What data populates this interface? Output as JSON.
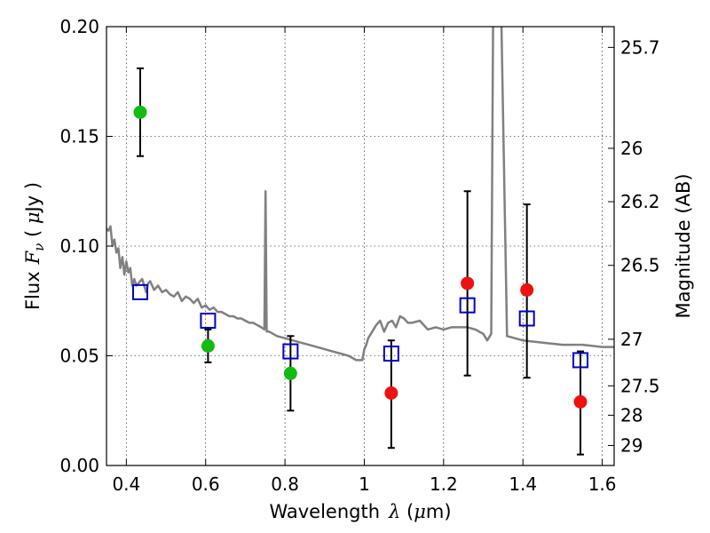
{
  "chart_data": {
    "type": "scatter",
    "xlabel": "Wavelength",
    "xlabel_symbol": "λ",
    "xlabel_unit_open": " (",
    "xlabel_unit_mu": "μ",
    "xlabel_unit_rest": "m)",
    "ylabel": "Flux",
    "ylabel_symbol": "F",
    "ylabel_subscript": "ν",
    "ylabel_unit_open": "  ( ",
    "ylabel_unit_mu": "μ",
    "ylabel_unit_rest": "Jy )",
    "y2label": "Magnitude (AB)",
    "xlim": [
      0.35,
      1.63
    ],
    "ylim": [
      0.0,
      0.2
    ],
    "grid": true,
    "x_ticks": [
      0.4,
      0.6,
      0.8,
      1.0,
      1.2,
      1.4,
      1.6
    ],
    "x_tick_labels": [
      "0.4",
      "0.6",
      "0.8",
      "1",
      "1.2",
      "1.4",
      "1.6"
    ],
    "y_ticks": [
      0.0,
      0.05,
      0.1,
      0.15,
      0.2
    ],
    "y_tick_labels": [
      "0.00",
      "0.05",
      "0.10",
      "0.15",
      "0.20"
    ],
    "right_ticks": [
      {
        "mag": 25.7,
        "label": "25.7"
      },
      {
        "mag": 26,
        "label": "26"
      },
      {
        "mag": 26.2,
        "label": "26.2"
      },
      {
        "mag": 26.5,
        "label": "26.5"
      },
      {
        "mag": 27,
        "label": "27"
      },
      {
        "mag": 27.5,
        "label": "27.5"
      },
      {
        "mag": 28,
        "label": "28"
      },
      {
        "mag": 29,
        "label": "29"
      }
    ],
    "colors": {
      "detection_green": "#11bb11",
      "detection_red": "#ee1111",
      "model_box": "#0000cc",
      "spectrum": "#808080",
      "errorbar": "#000000"
    },
    "series": [
      {
        "marker": "circle",
        "color": "#11bb11",
        "points": [
          {
            "x": 0.435,
            "y": 0.161,
            "ylo": 0.141,
            "yhi": 0.181
          },
          {
            "x": 0.606,
            "y": 0.0545,
            "ylo": 0.047,
            "yhi": 0.062
          },
          {
            "x": 0.814,
            "y": 0.042,
            "ylo": 0.025,
            "yhi": 0.059
          }
        ]
      },
      {
        "marker": "circle",
        "color": "#ee1111",
        "points": [
          {
            "x": 1.068,
            "y": 0.033,
            "ylo": 0.008,
            "yhi": 0.057
          },
          {
            "x": 1.26,
            "y": 0.083,
            "ylo": 0.041,
            "yhi": 0.125
          },
          {
            "x": 1.41,
            "y": 0.08,
            "ylo": 0.04,
            "yhi": 0.119
          },
          {
            "x": 1.545,
            "y": 0.029,
            "ylo": 0.005,
            "yhi": 0.052
          }
        ]
      },
      {
        "marker": "square",
        "color": "#0000cc",
        "points": [
          {
            "x": 0.435,
            "y": 0.079
          },
          {
            "x": 0.606,
            "y": 0.066
          },
          {
            "x": 0.814,
            "y": 0.052
          },
          {
            "x": 1.068,
            "y": 0.051
          },
          {
            "x": 1.26,
            "y": 0.073
          },
          {
            "x": 1.41,
            "y": 0.067
          },
          {
            "x": 1.545,
            "y": 0.048
          }
        ]
      },
      {
        "marker": "line",
        "color": "#808080",
        "points": [
          [
            0.35,
            0.108
          ],
          [
            0.355,
            0.107
          ],
          [
            0.36,
            0.109
          ],
          [
            0.365,
            0.1
          ],
          [
            0.37,
            0.103
          ],
          [
            0.375,
            0.097
          ],
          [
            0.38,
            0.099
          ],
          [
            0.385,
            0.09
          ],
          [
            0.39,
            0.095
          ],
          [
            0.395,
            0.087
          ],
          [
            0.4,
            0.093
          ],
          [
            0.405,
            0.088
          ],
          [
            0.41,
            0.09
          ],
          [
            0.415,
            0.082
          ],
          [
            0.42,
            0.085
          ],
          [
            0.425,
            0.082
          ],
          [
            0.43,
            0.083
          ],
          [
            0.44,
            0.085
          ],
          [
            0.45,
            0.079
          ],
          [
            0.455,
            0.083
          ],
          [
            0.46,
            0.084
          ],
          [
            0.47,
            0.08
          ],
          [
            0.48,
            0.082
          ],
          [
            0.49,
            0.079
          ],
          [
            0.5,
            0.08
          ],
          [
            0.51,
            0.078
          ],
          [
            0.52,
            0.077
          ],
          [
            0.53,
            0.079
          ],
          [
            0.54,
            0.075
          ],
          [
            0.55,
            0.077
          ],
          [
            0.56,
            0.076
          ],
          [
            0.57,
            0.074
          ],
          [
            0.58,
            0.076
          ],
          [
            0.59,
            0.072
          ],
          [
            0.6,
            0.073
          ],
          [
            0.61,
            0.071
          ],
          [
            0.62,
            0.072
          ],
          [
            0.63,
            0.07
          ],
          [
            0.64,
            0.07
          ],
          [
            0.65,
            0.069
          ],
          [
            0.66,
            0.068
          ],
          [
            0.67,
            0.068
          ],
          [
            0.68,
            0.067
          ],
          [
            0.69,
            0.067
          ],
          [
            0.7,
            0.066
          ],
          [
            0.71,
            0.065
          ],
          [
            0.72,
            0.065
          ],
          [
            0.73,
            0.064
          ],
          [
            0.74,
            0.063
          ],
          [
            0.748,
            0.062
          ],
          [
            0.751,
            0.125
          ],
          [
            0.754,
            0.061
          ],
          [
            0.76,
            0.061
          ],
          [
            0.78,
            0.059
          ],
          [
            0.8,
            0.058
          ],
          [
            0.82,
            0.057
          ],
          [
            0.84,
            0.056
          ],
          [
            0.86,
            0.055
          ],
          [
            0.88,
            0.054
          ],
          [
            0.9,
            0.053
          ],
          [
            0.92,
            0.052
          ],
          [
            0.94,
            0.051
          ],
          [
            0.96,
            0.05
          ],
          [
            0.98,
            0.048
          ],
          [
            0.995,
            0.048
          ],
          [
            1.0,
            0.053
          ],
          [
            1.005,
            0.055
          ],
          [
            1.01,
            0.058
          ],
          [
            1.02,
            0.061
          ],
          [
            1.03,
            0.064
          ],
          [
            1.04,
            0.066
          ],
          [
            1.05,
            0.061
          ],
          [
            1.06,
            0.065
          ],
          [
            1.07,
            0.066
          ],
          [
            1.08,
            0.063
          ],
          [
            1.09,
            0.068
          ],
          [
            1.1,
            0.067
          ],
          [
            1.11,
            0.065
          ],
          [
            1.12,
            0.065
          ],
          [
            1.14,
            0.066
          ],
          [
            1.16,
            0.062
          ],
          [
            1.18,
            0.063
          ],
          [
            1.2,
            0.062
          ],
          [
            1.22,
            0.063
          ],
          [
            1.24,
            0.063
          ],
          [
            1.26,
            0.063
          ],
          [
            1.28,
            0.062
          ],
          [
            1.3,
            0.06
          ],
          [
            1.31,
            0.057
          ],
          [
            1.32,
            0.06
          ],
          [
            1.325,
            0.21
          ],
          [
            1.345,
            0.21
          ],
          [
            1.36,
            0.059
          ],
          [
            1.4,
            0.057
          ],
          [
            1.45,
            0.056
          ],
          [
            1.5,
            0.055
          ],
          [
            1.55,
            0.055
          ],
          [
            1.6,
            0.054
          ],
          [
            1.63,
            0.054
          ]
        ]
      }
    ]
  }
}
